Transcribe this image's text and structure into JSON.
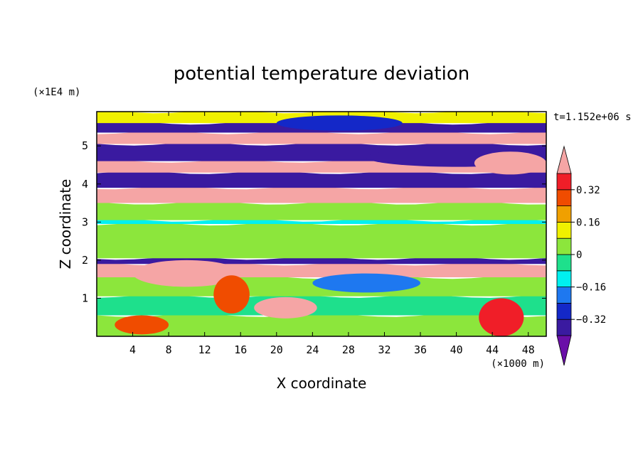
{
  "chart_data": {
    "type": "heatmap",
    "title": "potential temperature deviation",
    "xlabel": "X coordinate",
    "ylabel": "Z coordinate",
    "x_unit": "(×1000 m)",
    "y_unit": "(×1E4 m)",
    "time_label": "t=1.152e+06 s",
    "xlim": [
      0,
      50
    ],
    "ylim": [
      0,
      5.9
    ],
    "x_ticks": [
      4,
      8,
      12,
      16,
      20,
      24,
      28,
      32,
      36,
      40,
      44,
      48
    ],
    "y_ticks": [
      1,
      2,
      3,
      4,
      5
    ],
    "colorbar": {
      "levels": [
        -0.4,
        -0.32,
        -0.24,
        -0.16,
        -0.08,
        0,
        0.08,
        0.16,
        0.24,
        0.32,
        0.4
      ],
      "labels": [
        "0.32",
        "0.16",
        "0",
        "−0.16",
        "−0.32"
      ],
      "label_values": [
        0.32,
        0.16,
        0,
        -0.16,
        -0.32
      ],
      "colors": [
        "#6a0fa8",
        "#3a1aa0",
        "#1428c8",
        "#1e78f0",
        "#00f0f0",
        "#1ee08c",
        "#8ce63c",
        "#f0f000",
        "#f0a000",
        "#f04c00",
        "#f01e28",
        "#f5a5a5"
      ],
      "extend": "both"
    },
    "bands": [
      {
        "z": [
          0.0,
          0.55
        ],
        "value": 0.02
      },
      {
        "z": [
          0.55,
          1.05
        ],
        "value": -0.06
      },
      {
        "z": [
          1.05,
          1.55
        ],
        "value": 0.05
      },
      {
        "z": [
          1.55,
          1.9
        ],
        "value": 0.4
      },
      {
        "z": [
          1.9,
          2.05
        ],
        "value": -0.4
      },
      {
        "z": [
          2.05,
          2.95
        ],
        "value": 0.06
      },
      {
        "z": [
          2.95,
          3.05
        ],
        "value": -0.15
      },
      {
        "z": [
          3.05,
          3.5
        ],
        "value": 0.07
      },
      {
        "z": [
          3.5,
          3.9
        ],
        "value": 0.4
      },
      {
        "z": [
          3.9,
          4.3
        ],
        "value": -0.4
      },
      {
        "z": [
          4.3,
          4.6
        ],
        "value": 0.4
      },
      {
        "z": [
          4.6,
          5.05
        ],
        "value": -0.4
      },
      {
        "z": [
          5.05,
          5.35
        ],
        "value": 0.4
      },
      {
        "z": [
          5.35,
          5.6
        ],
        "value": -0.4
      },
      {
        "z": [
          5.6,
          5.9
        ],
        "value": 0.1
      }
    ],
    "features": [
      {
        "type": "blob",
        "cx": 10,
        "cz": 1.65,
        "rx": 6,
        "rz": 0.35,
        "value": 0.4
      },
      {
        "type": "blob",
        "cx": 21,
        "cz": 0.75,
        "rx": 3.5,
        "rz": 0.28,
        "value": 0.4
      },
      {
        "type": "blob",
        "cx": 15,
        "cz": 1.1,
        "rx": 2.0,
        "rz": 0.5,
        "value": 0.24
      },
      {
        "type": "blob",
        "cx": 30,
        "cz": 1.4,
        "rx": 6,
        "rz": 0.25,
        "value": -0.24
      },
      {
        "type": "blob",
        "cx": 27,
        "cz": 5.6,
        "rx": 7,
        "rz": 0.2,
        "value": -0.32
      },
      {
        "type": "blob",
        "cx": 45,
        "cz": 0.5,
        "rx": 2.5,
        "rz": 0.5,
        "value": 0.32
      },
      {
        "type": "blob",
        "cx": 5,
        "cz": 0.3,
        "rx": 3,
        "rz": 0.25,
        "value": 0.24
      },
      {
        "type": "blob",
        "cx": 40,
        "cz": 4.7,
        "rx": 10,
        "rz": 0.25,
        "value": -0.4
      },
      {
        "type": "blob",
        "cx": 46,
        "cz": 4.55,
        "rx": 4,
        "rz": 0.3,
        "value": 0.4
      }
    ]
  }
}
